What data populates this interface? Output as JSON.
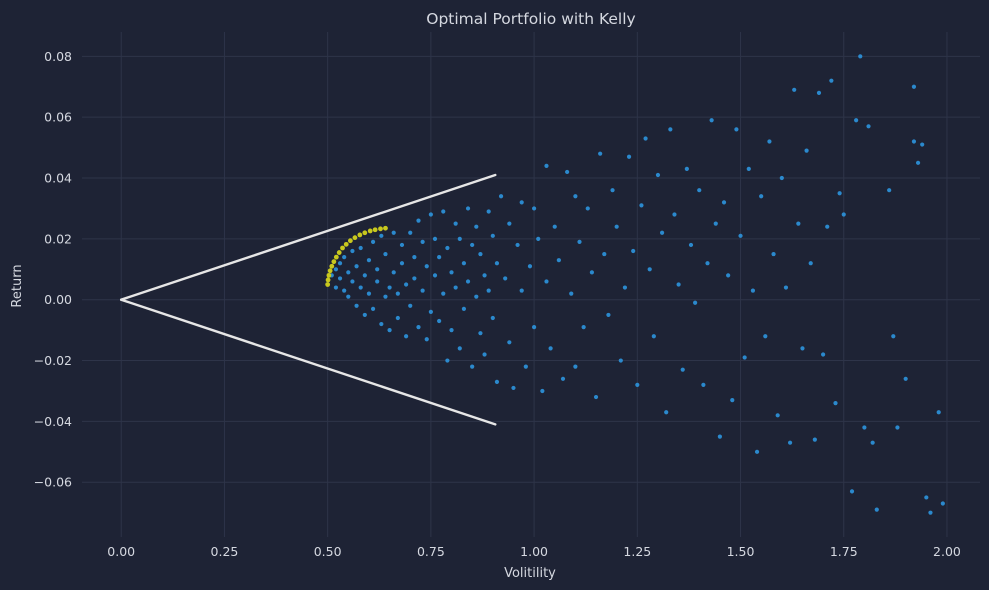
{
  "chart_data": {
    "type": "scatter",
    "title": "Optimal Portfolio with Kelly",
    "xlabel": "Volitility",
    "ylabel": "Return",
    "xlim": [
      -0.095,
      2.08
    ],
    "ylim": [
      -0.078,
      0.088
    ],
    "grid": true,
    "x_ticks": [
      0.0,
      0.25,
      0.5,
      0.75,
      1.0,
      1.25,
      1.5,
      1.75,
      2.0
    ],
    "x_tick_labels": [
      "0.00",
      "0.25",
      "0.50",
      "0.75",
      "1.00",
      "1.25",
      "1.50",
      "1.75",
      "2.00"
    ],
    "y_ticks": [
      -0.06,
      -0.04,
      -0.02,
      0.0,
      0.02,
      0.04,
      0.06,
      0.08
    ],
    "y_tick_labels": [
      "−0.06",
      "−0.04",
      "−0.02",
      "0.00",
      "0.02",
      "0.04",
      "0.06",
      "0.08"
    ],
    "colors": {
      "background": "#1e2335",
      "scatter": "#2c8fd6",
      "frontier": "#c8c81e",
      "capital_lines": "#e6e6e6",
      "text": "#d5d8e0",
      "grid": "#2e3449"
    },
    "series": [
      {
        "kind": "scatter",
        "points": [
          [
            0.5,
            0.005
          ],
          [
            0.51,
            0.008
          ],
          [
            0.52,
            0.01
          ],
          [
            0.52,
            0.004
          ],
          [
            0.53,
            0.012
          ],
          [
            0.53,
            0.007
          ],
          [
            0.54,
            0.003
          ],
          [
            0.54,
            0.014
          ],
          [
            0.55,
            0.009
          ],
          [
            0.55,
            0.001
          ],
          [
            0.56,
            0.016
          ],
          [
            0.56,
            0.006
          ],
          [
            0.57,
            0.011
          ],
          [
            0.57,
            -0.002
          ],
          [
            0.58,
            0.017
          ],
          [
            0.58,
            0.004
          ],
          [
            0.59,
            0.008
          ],
          [
            0.59,
            -0.005
          ],
          [
            0.6,
            0.013
          ],
          [
            0.6,
            0.002
          ],
          [
            0.61,
            0.019
          ],
          [
            0.61,
            -0.003
          ],
          [
            0.62,
            0.01
          ],
          [
            0.62,
            0.006
          ],
          [
            0.63,
            0.021
          ],
          [
            0.63,
            -0.008
          ],
          [
            0.64,
            0.015
          ],
          [
            0.64,
            0.001
          ],
          [
            0.65,
            0.004
          ],
          [
            0.65,
            -0.01
          ],
          [
            0.66,
            0.022
          ],
          [
            0.66,
            0.009
          ],
          [
            0.67,
            0.002
          ],
          [
            0.67,
            -0.006
          ],
          [
            0.68,
            0.018
          ],
          [
            0.68,
            0.012
          ],
          [
            0.69,
            -0.012
          ],
          [
            0.69,
            0.005
          ],
          [
            0.7,
            0.022
          ],
          [
            0.7,
            -0.002
          ],
          [
            0.71,
            0.014
          ],
          [
            0.71,
            0.007
          ],
          [
            0.72,
            -0.009
          ],
          [
            0.72,
            0.026
          ],
          [
            0.73,
            0.003
          ],
          [
            0.73,
            0.019
          ],
          [
            0.74,
            -0.013
          ],
          [
            0.74,
            0.011
          ],
          [
            0.75,
            0.028
          ],
          [
            0.75,
            -0.004
          ],
          [
            0.76,
            0.008
          ],
          [
            0.76,
            0.02
          ],
          [
            0.77,
            -0.007
          ],
          [
            0.77,
            0.014
          ],
          [
            0.78,
            0.002
          ],
          [
            0.78,
            0.029
          ],
          [
            0.79,
            -0.02
          ],
          [
            0.79,
            0.017
          ],
          [
            0.8,
            0.009
          ],
          [
            0.8,
            -0.01
          ],
          [
            0.81,
            0.025
          ],
          [
            0.81,
            0.004
          ],
          [
            0.82,
            -0.016
          ],
          [
            0.82,
            0.02
          ],
          [
            0.83,
            0.012
          ],
          [
            0.83,
            -0.003
          ],
          [
            0.84,
            0.03
          ],
          [
            0.84,
            0.006
          ],
          [
            0.85,
            -0.022
          ],
          [
            0.85,
            0.018
          ],
          [
            0.86,
            0.001
          ],
          [
            0.86,
            0.024
          ],
          [
            0.87,
            -0.011
          ],
          [
            0.87,
            0.015
          ],
          [
            0.88,
            0.008
          ],
          [
            0.88,
            -0.018
          ],
          [
            0.89,
            0.029
          ],
          [
            0.89,
            0.003
          ],
          [
            0.9,
            -0.006
          ],
          [
            0.9,
            0.021
          ],
          [
            0.91,
            0.012
          ],
          [
            0.91,
            -0.027
          ],
          [
            0.92,
            0.034
          ],
          [
            0.93,
            0.007
          ],
          [
            0.94,
            -0.014
          ],
          [
            0.94,
            0.025
          ],
          [
            0.95,
            -0.029
          ],
          [
            0.96,
            0.018
          ],
          [
            0.97,
            0.003
          ],
          [
            0.97,
            0.032
          ],
          [
            0.98,
            -0.022
          ],
          [
            0.99,
            0.011
          ],
          [
            1.0,
            -0.009
          ],
          [
            1.0,
            0.03
          ],
          [
            1.01,
            0.02
          ],
          [
            1.02,
            -0.03
          ],
          [
            1.03,
            0.044
          ],
          [
            1.03,
            0.006
          ],
          [
            1.04,
            -0.016
          ],
          [
            1.05,
            0.024
          ],
          [
            1.06,
            0.013
          ],
          [
            1.07,
            -0.026
          ],
          [
            1.08,
            0.042
          ],
          [
            1.09,
            0.002
          ],
          [
            1.1,
            -0.022
          ],
          [
            1.1,
            0.034
          ],
          [
            1.11,
            0.019
          ],
          [
            1.12,
            -0.009
          ],
          [
            1.13,
            0.03
          ],
          [
            1.14,
            0.009
          ],
          [
            1.15,
            -0.032
          ],
          [
            1.16,
            0.048
          ],
          [
            1.17,
            0.015
          ],
          [
            1.18,
            -0.005
          ],
          [
            1.19,
            0.036
          ],
          [
            1.2,
            0.024
          ],
          [
            1.21,
            -0.02
          ],
          [
            1.22,
            0.004
          ],
          [
            1.23,
            0.047
          ],
          [
            1.24,
            0.016
          ],
          [
            1.25,
            -0.028
          ],
          [
            1.26,
            0.031
          ],
          [
            1.27,
            0.053
          ],
          [
            1.28,
            0.01
          ],
          [
            1.29,
            -0.012
          ],
          [
            1.3,
            0.041
          ],
          [
            1.31,
            0.022
          ],
          [
            1.32,
            -0.037
          ],
          [
            1.33,
            0.056
          ],
          [
            1.34,
            0.028
          ],
          [
            1.35,
            0.005
          ],
          [
            1.36,
            -0.023
          ],
          [
            1.37,
            0.043
          ],
          [
            1.38,
            0.018
          ],
          [
            1.39,
            -0.001
          ],
          [
            1.4,
            0.036
          ],
          [
            1.41,
            -0.028
          ],
          [
            1.42,
            0.012
          ],
          [
            1.43,
            0.059
          ],
          [
            1.44,
            0.025
          ],
          [
            1.45,
            -0.045
          ],
          [
            1.46,
            0.032
          ],
          [
            1.47,
            0.008
          ],
          [
            1.48,
            -0.033
          ],
          [
            1.49,
            0.056
          ],
          [
            1.5,
            0.021
          ],
          [
            1.51,
            -0.019
          ],
          [
            1.52,
            0.043
          ],
          [
            1.53,
            0.003
          ],
          [
            1.54,
            -0.05
          ],
          [
            1.55,
            0.034
          ],
          [
            1.56,
            -0.012
          ],
          [
            1.57,
            0.052
          ],
          [
            1.58,
            0.015
          ],
          [
            1.59,
            -0.038
          ],
          [
            1.6,
            0.04
          ],
          [
            1.61,
            0.004
          ],
          [
            1.62,
            -0.047
          ],
          [
            1.63,
            0.069
          ],
          [
            1.64,
            0.025
          ],
          [
            1.65,
            -0.016
          ],
          [
            1.66,
            0.049
          ],
          [
            1.67,
            0.012
          ],
          [
            1.68,
            -0.046
          ],
          [
            1.69,
            0.068
          ],
          [
            1.7,
            -0.018
          ],
          [
            1.71,
            0.024
          ],
          [
            1.72,
            0.072
          ],
          [
            1.73,
            -0.034
          ],
          [
            1.74,
            0.035
          ],
          [
            1.75,
            0.028
          ],
          [
            1.77,
            -0.063
          ],
          [
            1.78,
            0.059
          ],
          [
            1.79,
            0.08
          ],
          [
            1.8,
            -0.042
          ],
          [
            1.81,
            0.057
          ],
          [
            1.82,
            -0.047
          ],
          [
            1.83,
            -0.069
          ],
          [
            1.86,
            0.036
          ],
          [
            1.87,
            -0.012
          ],
          [
            1.88,
            -0.042
          ],
          [
            1.9,
            -0.026
          ],
          [
            1.92,
            0.07
          ],
          [
            1.93,
            0.045
          ],
          [
            1.94,
            0.051
          ],
          [
            1.95,
            -0.065
          ],
          [
            1.96,
            -0.07
          ],
          [
            1.98,
            -0.037
          ],
          [
            1.99,
            -0.067
          ],
          [
            1.92,
            0.052
          ]
        ]
      },
      {
        "kind": "frontier",
        "points": [
          [
            0.5,
            0.005
          ],
          [
            0.501,
            0.0065
          ],
          [
            0.503,
            0.008
          ],
          [
            0.506,
            0.0095
          ],
          [
            0.51,
            0.011
          ],
          [
            0.515,
            0.0125
          ],
          [
            0.521,
            0.014
          ],
          [
            0.528,
            0.0155
          ],
          [
            0.536,
            0.017
          ],
          [
            0.545,
            0.0182
          ],
          [
            0.555,
            0.0194
          ],
          [
            0.566,
            0.0204
          ],
          [
            0.578,
            0.0213
          ],
          [
            0.59,
            0.022
          ],
          [
            0.603,
            0.0226
          ],
          [
            0.615,
            0.023
          ],
          [
            0.628,
            0.0233
          ],
          [
            0.64,
            0.0235
          ]
        ]
      },
      {
        "kind": "capital_line_upper",
        "points": [
          [
            0.0,
            0.0
          ],
          [
            0.906,
            0.041
          ]
        ]
      },
      {
        "kind": "capital_line_lower",
        "points": [
          [
            0.0,
            0.0
          ],
          [
            0.906,
            -0.041
          ]
        ]
      }
    ]
  }
}
